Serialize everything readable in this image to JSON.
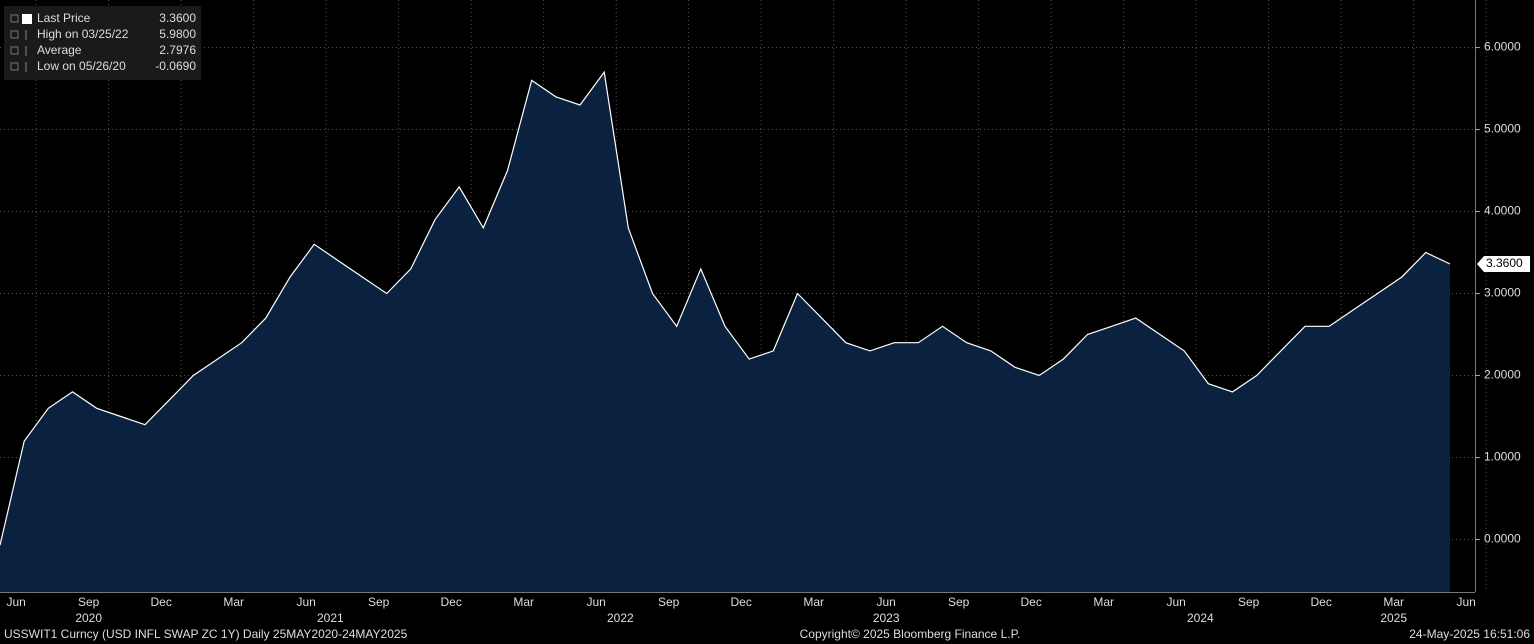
{
  "chart_data": {
    "type": "area",
    "legend": [
      {
        "name": "Last Price",
        "value": "3.3600"
      },
      {
        "name": "High on 03/25/22",
        "value": "5.9800"
      },
      {
        "name": "Average",
        "value": "2.7976"
      },
      {
        "name": "Low on 05/26/20",
        "value": "-0.0690"
      }
    ],
    "last_value_label": "3.3600",
    "color": "#0a2240",
    "line_color": "#ffffff",
    "grid": true,
    "x": [
      "2020-05",
      "2020-06",
      "2020-07",
      "2020-08",
      "2020-09",
      "2020-10",
      "2020-11",
      "2020-12",
      "2021-01",
      "2021-02",
      "2021-03",
      "2021-04",
      "2021-05",
      "2021-06",
      "2021-07",
      "2021-08",
      "2021-09",
      "2021-10",
      "2021-11",
      "2021-12",
      "2022-01",
      "2022-02",
      "2022-03",
      "2022-04",
      "2022-05",
      "2022-06",
      "2022-07",
      "2022-08",
      "2022-09",
      "2022-10",
      "2022-11",
      "2022-12",
      "2023-01",
      "2023-02",
      "2023-03",
      "2023-04",
      "2023-05",
      "2023-06",
      "2023-07",
      "2023-08",
      "2023-09",
      "2023-10",
      "2023-11",
      "2023-12",
      "2024-01",
      "2024-02",
      "2024-03",
      "2024-04",
      "2024-05",
      "2024-06",
      "2024-07",
      "2024-08",
      "2024-09",
      "2024-10",
      "2024-11",
      "2024-12",
      "2025-01",
      "2025-02",
      "2025-03",
      "2025-04",
      "2025-05"
    ],
    "values": [
      -0.07,
      1.2,
      1.6,
      1.8,
      1.6,
      1.5,
      1.4,
      1.7,
      2.0,
      2.2,
      2.4,
      2.7,
      3.2,
      3.6,
      3.4,
      3.2,
      3.0,
      3.3,
      3.9,
      4.3,
      3.8,
      4.5,
      5.6,
      5.4,
      5.3,
      5.7,
      3.8,
      3.0,
      2.6,
      3.3,
      2.6,
      2.2,
      2.3,
      3.0,
      2.7,
      2.4,
      2.3,
      2.4,
      2.4,
      2.6,
      2.4,
      2.3,
      2.1,
      2.0,
      2.2,
      2.5,
      2.6,
      2.7,
      2.5,
      2.3,
      1.9,
      1.8,
      2.0,
      2.3,
      2.6,
      2.6,
      2.8,
      3.0,
      3.2,
      3.5,
      3.36
    ],
    "ylim": [
      -0.64,
      6.58
    ],
    "yticks": [
      {
        "value": 0,
        "label": "0.0000"
      },
      {
        "value": 1,
        "label": "1.0000"
      },
      {
        "value": 2,
        "label": "2.0000"
      },
      {
        "value": 3,
        "label": "3.0000"
      },
      {
        "value": 4,
        "label": "4.0000"
      },
      {
        "value": 5,
        "label": "5.0000"
      },
      {
        "value": 6,
        "label": "6.0000"
      }
    ],
    "xticks": [
      {
        "value": "2020-06",
        "label": "Jun"
      },
      {
        "value": "2020-09",
        "label": "Sep"
      },
      {
        "value": "2020-12",
        "label": "Dec"
      },
      {
        "value": "2021-03",
        "label": "Mar"
      },
      {
        "value": "2021-06",
        "label": "Jun"
      },
      {
        "value": "2021-09",
        "label": "Sep"
      },
      {
        "value": "2021-12",
        "label": "Dec"
      },
      {
        "value": "2022-03",
        "label": "Mar"
      },
      {
        "value": "2022-06",
        "label": "Jun"
      },
      {
        "value": "2022-09",
        "label": "Sep"
      },
      {
        "value": "2022-12",
        "label": "Dec"
      },
      {
        "value": "2023-03",
        "label": "Mar"
      },
      {
        "value": "2023-06",
        "label": "Jun"
      },
      {
        "value": "2023-09",
        "label": "Sep"
      },
      {
        "value": "2023-12",
        "label": "Dec"
      },
      {
        "value": "2024-03",
        "label": "Mar"
      },
      {
        "value": "2024-06",
        "label": "Jun"
      },
      {
        "value": "2024-09",
        "label": "Sep"
      },
      {
        "value": "2024-12",
        "label": "Dec"
      },
      {
        "value": "2025-03",
        "label": "Mar"
      },
      {
        "value": "2025-06",
        "label": "Jun"
      }
    ],
    "years": [
      {
        "value": "2020-09",
        "label": "2020"
      },
      {
        "value": "2021-07",
        "label": "2021"
      },
      {
        "value": "2022-07",
        "label": "2022"
      },
      {
        "value": "2023-06",
        "label": "2023"
      },
      {
        "value": "2024-07",
        "label": "2024"
      },
      {
        "value": "2025-03",
        "label": "2025"
      }
    ],
    "footer": {
      "ticker": "USSWIT1 Curncy (USD INFL SWAP ZC 1Y)  Daily 25MAY2020-24MAY2025",
      "copyright": "Copyright© 2025 Bloomberg Finance L.P.",
      "timestamp": "24-May-2025 16:51:06"
    }
  }
}
